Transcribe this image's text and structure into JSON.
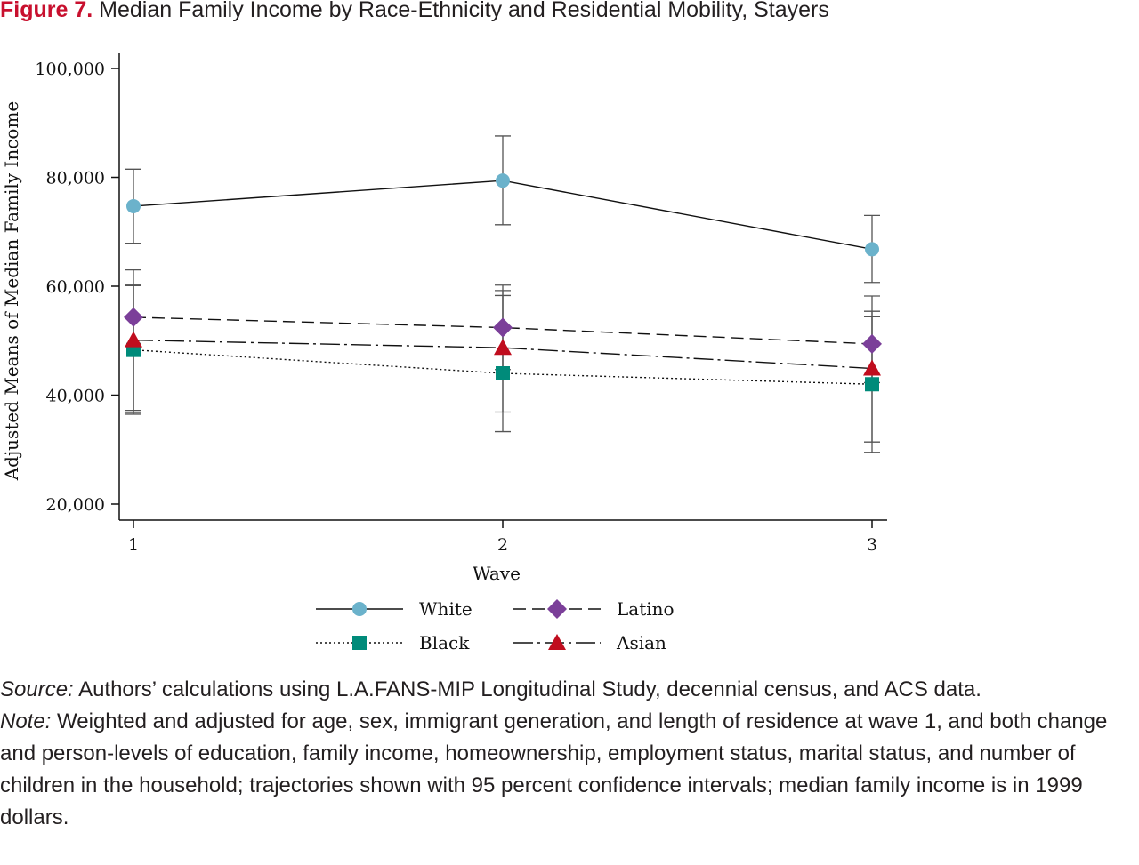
{
  "figure": {
    "number": "Figure 7.",
    "title": "Median Family Income by Race-Ethnicity and Residential Mobility, Stayers"
  },
  "chart_data": {
    "type": "line",
    "xlabel": "Wave",
    "ylabel": "Adjusted Means of Median Family Income",
    "x": [
      1,
      2,
      3
    ],
    "x_tick_labels": [
      "1",
      "2",
      "3"
    ],
    "y_ticks": [
      20000,
      40000,
      60000,
      80000,
      100000
    ],
    "y_tick_labels": [
      "20,000",
      "40,000",
      "60,000",
      "80,000",
      "100,000"
    ],
    "xlim": [
      1,
      3
    ],
    "ylim": [
      20000,
      100000
    ],
    "grid": false,
    "legend_position": "bottom",
    "series": [
      {
        "name": "White",
        "marker": "circle",
        "dash": "solid",
        "color": "#6bb2cb",
        "values": [
          74700,
          79400,
          66800
        ],
        "ci_low": [
          67900,
          71300,
          60700
        ],
        "ci_high": [
          81500,
          87600,
          73000
        ]
      },
      {
        "name": "Latino",
        "marker": "diamond",
        "dash": "dashed",
        "color": "#7b3f99",
        "values": [
          54300,
          52400,
          49400
        ],
        "ci_low": [
          37200,
          44700,
          42300
        ],
        "ci_high": [
          63000,
          60200,
          58200
        ]
      },
      {
        "name": "Black",
        "marker": "square",
        "dash": "dotted",
        "color": "#008b7a",
        "values": [
          48300,
          44000,
          42000
        ],
        "ci_low": [
          36500,
          33300,
          29500
        ],
        "ci_high": [
          60100,
          59200,
          55400
        ]
      },
      {
        "name": "Asian",
        "marker": "triangle",
        "dash": "dashdot",
        "color": "#c00d1e",
        "values": [
          50100,
          48700,
          44900
        ],
        "ci_low": [
          36800,
          36900,
          31400
        ],
        "ci_high": [
          60300,
          58300,
          54400
        ]
      }
    ]
  },
  "caption": {
    "source_label": "Source:",
    "source_text": " Authors’ calculations using L.A.FANS-MIP Longitudinal Study, decennial census, and ACS data.",
    "note_label": "Note:",
    "note_text": " Weighted and adjusted for age, sex, immigrant generation, and length of residence at wave 1, and both change and person-levels of education, family income, homeownership, employment status, marital status, and number of children in the household; trajectories shown with 95 percent confidence intervals; median family income is in 1999 dollars."
  }
}
